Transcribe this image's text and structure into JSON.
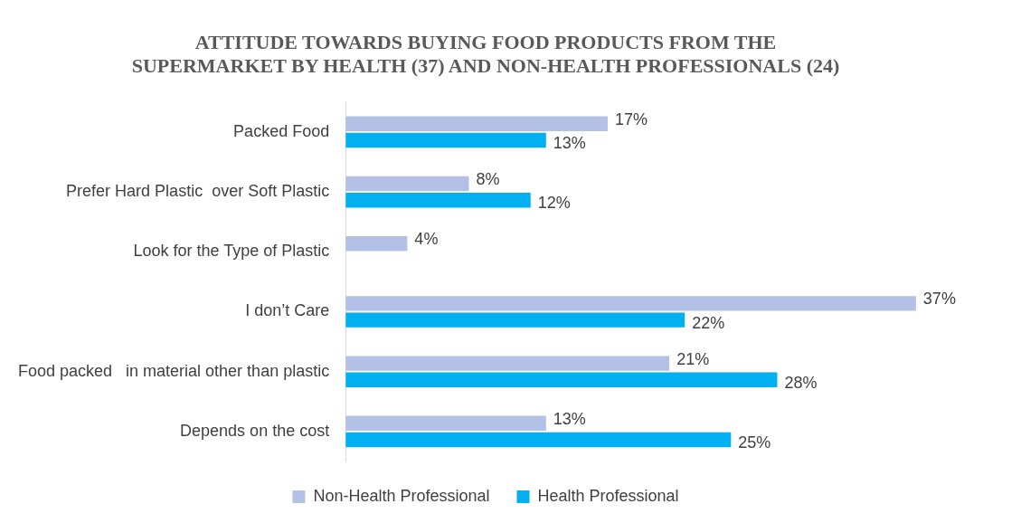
{
  "chart_data": {
    "type": "bar",
    "orientation": "horizontal",
    "title": "ATTITUDE TOWARDS BUYING FOOD PRODUCTS FROM THE SUPERMARKET BY HEALTH (37) AND NON-HEALTH PROFESSIONALS (24)",
    "categories": [
      "Packed Food",
      "Prefer Hard Plastic  over Soft Plastic",
      "Look for the Type of Plastic",
      "I don’t Care",
      "Food packed   in material other than plastic",
      "Depends on the cost"
    ],
    "series": [
      {
        "name": "Non-Health Professional",
        "color": "#b4c1e6",
        "values": [
          17,
          8,
          4,
          37,
          21,
          13
        ],
        "value_labels": [
          "17%",
          "8%",
          "4%",
          "37%",
          "21%",
          "13%"
        ]
      },
      {
        "name": "Health Professional",
        "color": "#00b0f0",
        "values": [
          13,
          12,
          null,
          22,
          28,
          25
        ],
        "value_labels": [
          "13%",
          "12%",
          null,
          "22%",
          "28%",
          "25%"
        ]
      }
    ],
    "legend": "bottom",
    "grid": false
  }
}
